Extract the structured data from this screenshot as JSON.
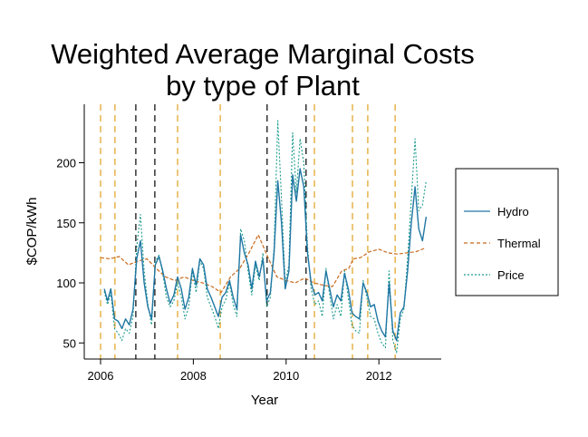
{
  "chart_data": {
    "type": "line",
    "title": [
      "Weighted Average Marginal Costs",
      "by type of Plant"
    ],
    "xlabel": "Year",
    "ylabel": "$COP/kWh",
    "xlim": [
      2005.65,
      2013.35
    ],
    "ylim": [
      35,
      247
    ],
    "x_ticks": [
      2006,
      2008,
      2010,
      2012
    ],
    "x_tick_labels": [
      "2006",
      "2008",
      "2010",
      "2012"
    ],
    "y_ticks": [
      50,
      100,
      150,
      200
    ],
    "y_tick_labels": [
      "50",
      "100",
      "150",
      "200"
    ],
    "grid": false,
    "legend": {
      "placement": "right",
      "entries": [
        {
          "name": "Hydro",
          "style": "solid",
          "color": "#1f77a4"
        },
        {
          "name": "Thermal",
          "style": "dashed",
          "color": "#c8691c"
        },
        {
          "name": "Price",
          "style": "dotted",
          "color": "#1a9a8a"
        }
      ]
    },
    "vlines": [
      {
        "x": 2006.0,
        "color": "#e0a020",
        "style": "dashed"
      },
      {
        "x": 2006.31,
        "color": "#e0a020",
        "style": "dashed"
      },
      {
        "x": 2006.76,
        "color": "#000000",
        "style": "dashed"
      },
      {
        "x": 2007.17,
        "color": "#000000",
        "style": "dashed"
      },
      {
        "x": 2007.66,
        "color": "#e0a020",
        "style": "dashed"
      },
      {
        "x": 2008.58,
        "color": "#e0a020",
        "style": "dashed"
      },
      {
        "x": 2009.59,
        "color": "#000000",
        "style": "dashed"
      },
      {
        "x": 2010.43,
        "color": "#000000",
        "style": "dashed"
      },
      {
        "x": 2010.61,
        "color": "#e0a020",
        "style": "dashed"
      },
      {
        "x": 2011.43,
        "color": "#e0a020",
        "style": "dashed"
      },
      {
        "x": 2011.76,
        "color": "#e0a020",
        "style": "dashed"
      },
      {
        "x": 2012.35,
        "color": "#e0a020",
        "style": "dashed"
      }
    ],
    "series": [
      {
        "name": "Hydro",
        "x": [
          2006.08,
          2006.15,
          2006.22,
          2006.3,
          2006.38,
          2006.46,
          2006.54,
          2006.62,
          2006.7,
          2006.78,
          2006.86,
          2006.94,
          2007.02,
          2007.1,
          2007.18,
          2007.26,
          2007.34,
          2007.42,
          2007.5,
          2007.58,
          2007.66,
          2007.74,
          2007.82,
          2007.9,
          2007.98,
          2008.06,
          2008.14,
          2008.22,
          2008.3,
          2008.38,
          2008.46,
          2008.54,
          2008.62,
          2008.7,
          2008.78,
          2008.86,
          2008.94,
          2009.02,
          2009.1,
          2009.18,
          2009.26,
          2009.34,
          2009.42,
          2009.5,
          2009.58,
          2009.66,
          2009.74,
          2009.82,
          2009.9,
          2009.98,
          2010.06,
          2010.14,
          2010.22,
          2010.3,
          2010.38,
          2010.46,
          2010.54,
          2010.62,
          2010.7,
          2010.78,
          2010.86,
          2010.94,
          2011.02,
          2011.1,
          2011.18,
          2011.26,
          2011.34,
          2011.42,
          2011.5,
          2011.58,
          2011.66,
          2011.74,
          2011.82,
          2011.9,
          2011.98,
          2012.06,
          2012.14,
          2012.22,
          2012.3,
          2012.38,
          2012.46,
          2012.54,
          2012.62,
          2012.7,
          2012.78,
          2012.86,
          2012.94,
          2013.02
        ],
        "values": [
          95,
          85,
          95,
          70,
          68,
          62,
          70,
          65,
          78,
          120,
          135,
          100,
          80,
          70,
          115,
          122,
          110,
          95,
          83,
          90,
          105,
          95,
          78,
          88,
          112,
          98,
          120,
          115,
          95,
          88,
          80,
          72,
          88,
          92,
          102,
          88,
          78,
          140,
          125,
          115,
          95,
          118,
          105,
          120,
          85,
          92,
          125,
          185,
          150,
          95,
          110,
          190,
          168,
          195,
          180,
          125,
          100,
          90,
          92,
          85,
          110,
          95,
          80,
          90,
          85,
          108,
          95,
          75,
          72,
          70,
          100,
          92,
          80,
          82,
          68,
          60,
          55,
          100,
          60,
          52,
          75,
          80,
          110,
          150,
          180,
          145,
          135,
          155
        ]
      },
      {
        "name": "Thermal",
        "x": [
          2006.0,
          2006.2,
          2006.4,
          2006.6,
          2006.8,
          2007.0,
          2007.2,
          2007.4,
          2007.6,
          2007.8,
          2008.0,
          2008.2,
          2008.4,
          2008.6,
          2008.8,
          2009.0,
          2009.2,
          2009.4,
          2009.6,
          2009.8,
          2010.0,
          2010.2,
          2010.4,
          2010.6,
          2010.8,
          2011.0,
          2011.2,
          2011.35,
          2011.45,
          2011.6,
          2011.8,
          2012.0,
          2012.2,
          2012.4,
          2012.6,
          2012.8,
          2013.0
        ],
        "values": [
          121,
          120,
          122,
          115,
          118,
          120,
          112,
          105,
          102,
          105,
          102,
          100,
          97,
          92,
          105,
          112,
          125,
          140,
          122,
          105,
          102,
          100,
          104,
          100,
          98,
          97,
          110,
          112,
          120,
          121,
          126,
          128,
          125,
          124,
          125,
          126,
          129
        ]
      },
      {
        "name": "Price",
        "x": [
          2006.08,
          2006.15,
          2006.22,
          2006.3,
          2006.38,
          2006.46,
          2006.54,
          2006.62,
          2006.7,
          2006.78,
          2006.86,
          2006.94,
          2007.02,
          2007.1,
          2007.18,
          2007.26,
          2007.34,
          2007.42,
          2007.5,
          2007.58,
          2007.66,
          2007.74,
          2007.82,
          2007.9,
          2007.98,
          2008.06,
          2008.14,
          2008.22,
          2008.3,
          2008.38,
          2008.46,
          2008.54,
          2008.62,
          2008.7,
          2008.78,
          2008.86,
          2008.94,
          2009.02,
          2009.1,
          2009.18,
          2009.26,
          2009.34,
          2009.42,
          2009.5,
          2009.58,
          2009.66,
          2009.74,
          2009.82,
          2009.9,
          2009.98,
          2010.06,
          2010.14,
          2010.22,
          2010.3,
          2010.38,
          2010.46,
          2010.54,
          2010.62,
          2010.7,
          2010.78,
          2010.86,
          2010.94,
          2011.02,
          2011.1,
          2011.18,
          2011.26,
          2011.34,
          2011.42,
          2011.5,
          2011.58,
          2011.66,
          2011.74,
          2011.82,
          2011.9,
          2011.98,
          2012.06,
          2012.14,
          2012.22,
          2012.3,
          2012.38,
          2012.46,
          2012.54,
          2012.62,
          2012.7,
          2012.78,
          2012.86,
          2012.94,
          2013.02
        ],
        "values": [
          93,
          82,
          92,
          62,
          58,
          52,
          62,
          58,
          72,
          130,
          157,
          110,
          82,
          65,
          118,
          123,
          108,
          88,
          80,
          85,
          100,
          88,
          70,
          80,
          110,
          92,
          118,
          112,
          88,
          80,
          72,
          62,
          80,
          86,
          100,
          82,
          72,
          145,
          135,
          110,
          90,
          115,
          102,
          125,
          80,
          88,
          130,
          235,
          170,
          100,
          115,
          225,
          175,
          220,
          200,
          130,
          95,
          82,
          85,
          72,
          112,
          90,
          70,
          82,
          72,
          110,
          88,
          65,
          60,
          58,
          102,
          88,
          72,
          70,
          58,
          50,
          46,
          110,
          52,
          42,
          70,
          78,
          120,
          170,
          220,
          160,
          165,
          185
        ]
      }
    ]
  }
}
